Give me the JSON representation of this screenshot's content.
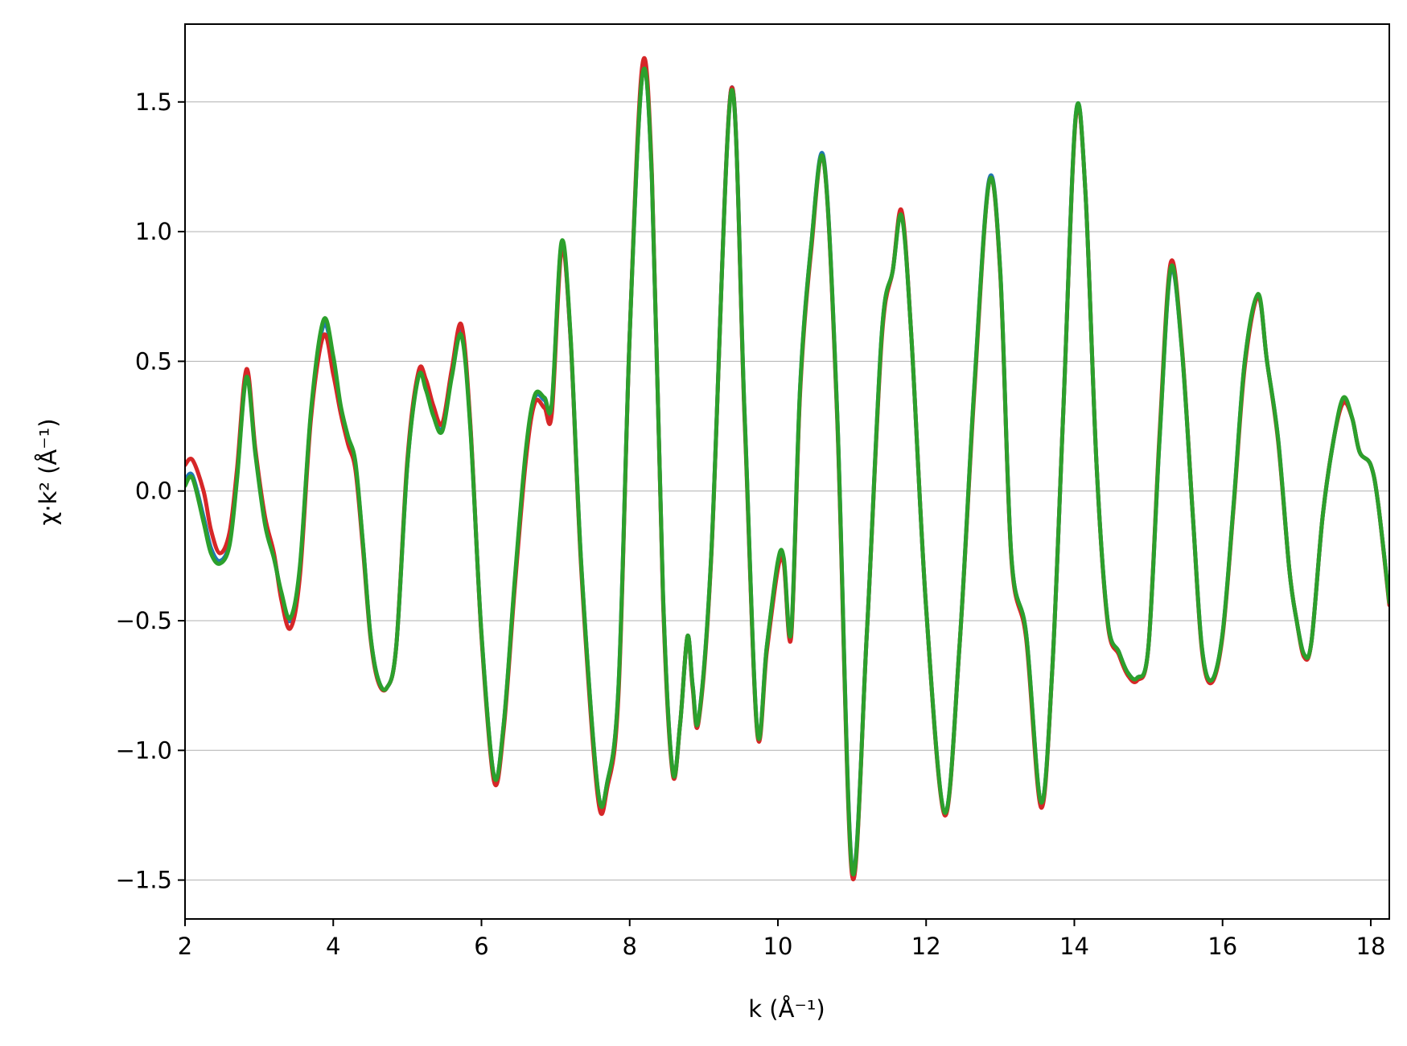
{
  "chart_data": {
    "type": "line",
    "xlabel": "k (Å⁻¹)",
    "ylabel": "χ·k² (Å⁻¹)",
    "xlim": [
      2.0,
      18.25
    ],
    "ylim": [
      -1.65,
      1.8
    ],
    "xticks": [
      2,
      4,
      6,
      8,
      10,
      12,
      14,
      16,
      18
    ],
    "xtick_labels": [
      "2",
      "4",
      "6",
      "8",
      "10",
      "12",
      "14",
      "16",
      "18"
    ],
    "yticks": [
      -1.5,
      -1.0,
      -0.5,
      0.0,
      0.5,
      1.0,
      1.5
    ],
    "ytick_labels": [
      "−1.5",
      "−1.0",
      "−0.5",
      "0.0",
      "0.5",
      "1.0",
      "1.5"
    ],
    "grid": "horizontal",
    "legend": "none",
    "series": [
      {
        "color": "#1f77b4",
        "x": [
          2.0,
          2.1,
          2.25,
          2.35,
          2.47,
          2.6,
          2.7,
          2.83,
          2.95,
          3.08,
          3.2,
          3.3,
          3.42,
          3.55,
          3.7,
          3.87,
          4.0,
          4.1,
          4.2,
          4.3,
          4.4,
          4.5,
          4.6,
          4.72,
          4.85,
          5.0,
          5.15,
          5.25,
          5.35,
          5.47,
          5.6,
          5.73,
          5.85,
          6.0,
          6.17,
          6.3,
          6.45,
          6.6,
          6.72,
          6.85,
          6.95,
          7.08,
          7.2,
          7.35,
          7.57,
          7.7,
          7.85,
          8.0,
          8.17,
          8.3,
          8.45,
          8.58,
          8.68,
          8.78,
          8.85,
          8.93,
          9.1,
          9.37,
          9.55,
          9.72,
          9.85,
          10.0,
          10.08,
          10.18,
          10.3,
          10.45,
          10.62,
          10.8,
          11.0,
          11.2,
          11.4,
          11.55,
          11.67,
          11.8,
          12.0,
          12.25,
          12.45,
          12.65,
          12.85,
          13.0,
          13.15,
          13.35,
          13.55,
          13.7,
          13.85,
          14.02,
          14.15,
          14.3,
          14.45,
          14.6,
          14.72,
          14.85,
          15.0,
          15.15,
          15.3,
          15.45,
          15.6,
          15.72,
          15.85,
          16.0,
          16.15,
          16.3,
          16.48,
          16.6,
          16.75,
          16.9,
          17.0,
          17.1,
          17.2,
          17.35,
          17.5,
          17.63,
          17.75,
          17.85,
          18.0,
          18.1,
          18.25
        ],
        "y": [
          0.04,
          0.06,
          -0.1,
          -0.22,
          -0.27,
          -0.2,
          0.05,
          0.45,
          0.15,
          -0.12,
          -0.25,
          -0.4,
          -0.5,
          -0.3,
          0.3,
          0.64,
          0.5,
          0.32,
          0.2,
          0.1,
          -0.2,
          -0.55,
          -0.72,
          -0.76,
          -0.6,
          0.1,
          0.45,
          0.4,
          0.3,
          0.24,
          0.45,
          0.62,
          0.25,
          -0.55,
          -1.1,
          -0.9,
          -0.35,
          0.15,
          0.36,
          0.35,
          0.33,
          0.95,
          0.6,
          -0.3,
          -1.15,
          -1.12,
          -0.75,
          0.6,
          1.6,
          1.2,
          -0.4,
          -1.08,
          -0.9,
          -0.56,
          -0.75,
          -0.88,
          -0.25,
          1.55,
          0.3,
          -0.92,
          -0.6,
          -0.28,
          -0.27,
          -0.55,
          0.4,
          0.95,
          1.28,
          0.3,
          -1.45,
          -0.55,
          0.6,
          0.85,
          1.07,
          0.6,
          -0.45,
          -1.24,
          -0.6,
          0.4,
          1.2,
          0.85,
          -0.25,
          -0.55,
          -1.2,
          -0.7,
          0.3,
          1.45,
          1.15,
          0.1,
          -0.5,
          -0.62,
          -0.7,
          -0.72,
          -0.6,
          0.2,
          0.85,
          0.55,
          -0.1,
          -0.6,
          -0.73,
          -0.55,
          -0.05,
          0.5,
          0.75,
          0.5,
          0.2,
          -0.3,
          -0.5,
          -0.63,
          -0.58,
          -0.1,
          0.2,
          0.35,
          0.28,
          0.15,
          0.1,
          -0.05,
          -0.43
        ]
      },
      {
        "color": "#d62728",
        "x": [
          2.0,
          2.1,
          2.25,
          2.35,
          2.47,
          2.6,
          2.7,
          2.83,
          2.95,
          3.08,
          3.2,
          3.3,
          3.42,
          3.55,
          3.7,
          3.87,
          4.0,
          4.1,
          4.2,
          4.3,
          4.4,
          4.5,
          4.6,
          4.72,
          4.85,
          5.0,
          5.15,
          5.25,
          5.35,
          5.47,
          5.6,
          5.73,
          5.85,
          6.0,
          6.17,
          6.3,
          6.45,
          6.6,
          6.72,
          6.85,
          6.95,
          7.08,
          7.2,
          7.35,
          7.57,
          7.7,
          7.85,
          8.0,
          8.17,
          8.3,
          8.45,
          8.58,
          8.68,
          8.78,
          8.85,
          8.93,
          9.1,
          9.37,
          9.55,
          9.72,
          9.85,
          10.0,
          10.08,
          10.18,
          10.3,
          10.45,
          10.62,
          10.8,
          11.0,
          11.2,
          11.4,
          11.55,
          11.67,
          11.8,
          12.0,
          12.25,
          12.45,
          12.65,
          12.85,
          13.0,
          13.15,
          13.35,
          13.55,
          13.7,
          13.85,
          14.02,
          14.15,
          14.3,
          14.45,
          14.6,
          14.72,
          14.85,
          15.0,
          15.15,
          15.3,
          15.45,
          15.6,
          15.72,
          15.85,
          16.0,
          16.15,
          16.3,
          16.48,
          16.6,
          16.75,
          16.9,
          17.0,
          17.1,
          17.2,
          17.35,
          17.5,
          17.63,
          17.75,
          17.85,
          18.0,
          18.1,
          18.25
        ],
        "y": [
          0.1,
          0.12,
          0.0,
          -0.15,
          -0.24,
          -0.16,
          0.08,
          0.47,
          0.16,
          -0.1,
          -0.24,
          -0.42,
          -0.53,
          -0.33,
          0.28,
          0.6,
          0.45,
          0.3,
          0.18,
          0.08,
          -0.22,
          -0.56,
          -0.73,
          -0.76,
          -0.6,
          0.12,
          0.46,
          0.43,
          0.33,
          0.26,
          0.47,
          0.64,
          0.26,
          -0.56,
          -1.12,
          -0.92,
          -0.37,
          0.12,
          0.34,
          0.32,
          0.3,
          0.93,
          0.6,
          -0.32,
          -1.18,
          -1.14,
          -0.78,
          0.6,
          1.64,
          1.22,
          -0.42,
          -1.09,
          -0.9,
          -0.56,
          -0.76,
          -0.89,
          -0.26,
          1.55,
          0.28,
          -0.93,
          -0.62,
          -0.3,
          -0.28,
          -0.56,
          0.38,
          0.93,
          1.27,
          0.28,
          -1.48,
          -0.55,
          0.58,
          0.85,
          1.08,
          0.6,
          -0.45,
          -1.25,
          -0.6,
          0.38,
          1.19,
          0.84,
          -0.26,
          -0.57,
          -1.22,
          -0.7,
          0.3,
          1.44,
          1.15,
          0.1,
          -0.51,
          -0.63,
          -0.71,
          -0.73,
          -0.6,
          0.22,
          0.88,
          0.56,
          -0.1,
          -0.61,
          -0.74,
          -0.56,
          -0.06,
          0.48,
          0.75,
          0.5,
          0.19,
          -0.3,
          -0.5,
          -0.64,
          -0.58,
          -0.1,
          0.2,
          0.34,
          0.28,
          0.15,
          0.1,
          -0.05,
          -0.44
        ]
      },
      {
        "color": "#2ca02c",
        "x": [
          2.0,
          2.1,
          2.25,
          2.35,
          2.47,
          2.6,
          2.7,
          2.83,
          2.95,
          3.08,
          3.2,
          3.3,
          3.42,
          3.55,
          3.7,
          3.87,
          4.0,
          4.1,
          4.2,
          4.3,
          4.4,
          4.5,
          4.6,
          4.72,
          4.85,
          5.0,
          5.15,
          5.25,
          5.35,
          5.47,
          5.6,
          5.73,
          5.85,
          6.0,
          6.17,
          6.3,
          6.45,
          6.6,
          6.72,
          6.85,
          6.95,
          7.08,
          7.2,
          7.35,
          7.57,
          7.7,
          7.85,
          8.0,
          8.17,
          8.3,
          8.45,
          8.58,
          8.68,
          8.78,
          8.85,
          8.93,
          9.1,
          9.37,
          9.55,
          9.72,
          9.85,
          10.0,
          10.08,
          10.18,
          10.3,
          10.45,
          10.62,
          10.8,
          11.0,
          11.2,
          11.4,
          11.55,
          11.67,
          11.8,
          12.0,
          12.25,
          12.45,
          12.65,
          12.85,
          13.0,
          13.15,
          13.35,
          13.55,
          13.7,
          13.85,
          14.02,
          14.15,
          14.3,
          14.45,
          14.6,
          14.72,
          14.85,
          15.0,
          15.15,
          15.3,
          15.45,
          15.6,
          15.72,
          15.85,
          16.0,
          16.15,
          16.3,
          16.48,
          16.6,
          16.75,
          16.9,
          17.0,
          17.1,
          17.2,
          17.35,
          17.5,
          17.63,
          17.75,
          17.85,
          18.0,
          18.1,
          18.25
        ],
        "y": [
          0.02,
          0.05,
          -0.12,
          -0.24,
          -0.28,
          -0.21,
          0.04,
          0.44,
          0.14,
          -0.13,
          -0.26,
          -0.39,
          -0.49,
          -0.29,
          0.31,
          0.66,
          0.52,
          0.33,
          0.21,
          0.11,
          -0.2,
          -0.55,
          -0.72,
          -0.76,
          -0.6,
          0.1,
          0.44,
          0.39,
          0.29,
          0.23,
          0.44,
          0.6,
          0.24,
          -0.55,
          -1.1,
          -0.9,
          -0.34,
          0.16,
          0.37,
          0.36,
          0.34,
          0.96,
          0.61,
          -0.3,
          -1.15,
          -1.12,
          -0.75,
          0.6,
          1.6,
          1.2,
          -0.4,
          -1.08,
          -0.9,
          -0.56,
          -0.75,
          -0.88,
          -0.25,
          1.54,
          0.3,
          -0.92,
          -0.6,
          -0.27,
          -0.26,
          -0.54,
          0.4,
          0.95,
          1.27,
          0.3,
          -1.46,
          -0.55,
          0.6,
          0.85,
          1.06,
          0.6,
          -0.45,
          -1.24,
          -0.6,
          0.4,
          1.19,
          0.85,
          -0.25,
          -0.55,
          -1.2,
          -0.7,
          0.3,
          1.45,
          1.15,
          0.1,
          -0.5,
          -0.62,
          -0.7,
          -0.72,
          -0.6,
          0.2,
          0.86,
          0.55,
          -0.1,
          -0.6,
          -0.73,
          -0.55,
          -0.05,
          0.5,
          0.76,
          0.5,
          0.2,
          -0.3,
          -0.5,
          -0.63,
          -0.58,
          -0.1,
          0.2,
          0.36,
          0.28,
          0.15,
          0.1,
          -0.05,
          -0.43
        ]
      }
    ]
  }
}
